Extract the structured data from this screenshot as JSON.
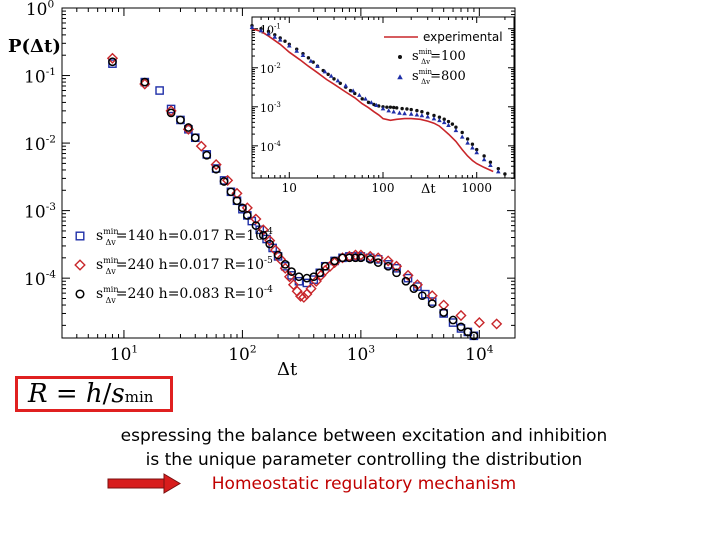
{
  "slide": {
    "formula": {
      "lhs": "R",
      "eq": " = ",
      "num": "h",
      "slash": "/",
      "denom": "s",
      "sub": "min",
      "border_color": "#e02020"
    },
    "text_line_1": "espressing the balance between excitation and inhibition",
    "text_line_2": "is the unique parameter controlling the distribution",
    "text_line_3": "Homeostatic regulatory mechanism",
    "highlight_color": "#c00000"
  },
  "chart_data": [
    {
      "type": "scatter",
      "ylabel": "P(Δt)",
      "xlabel": "Δt",
      "xscale": "log",
      "yscale": "log",
      "xlim": [
        3,
        20000
      ],
      "ylim": [
        1.3e-05,
        1
      ],
      "x_ticks": [
        10,
        100,
        1000,
        10000
      ],
      "x_tick_labels": [
        [
          "10",
          "1"
        ],
        [
          "10",
          "2"
        ],
        [
          "10",
          "3"
        ],
        [
          "10",
          "4"
        ]
      ],
      "y_ticks": [
        1,
        0.1,
        0.01,
        0.001,
        0.0001
      ],
      "y_tick_labels": [
        [
          "10",
          "0"
        ],
        [
          "10",
          "-1"
        ],
        [
          "10",
          "-2"
        ],
        [
          "10",
          "-3"
        ],
        [
          "10",
          "-4"
        ]
      ],
      "legend_position": "bottom-left",
      "series": [
        {
          "name": "sΔv min=140 h=0.017 R=10-4",
          "legend_s": "s",
          "legend_sup": "min",
          "legend_sub": "Δv",
          "legend_text": "=140 h=0.017 R=10",
          "legend_exp": "-4",
          "marker": "square",
          "color": "#1f2fa8",
          "x": [
            8,
            15,
            20,
            25,
            30,
            35,
            40,
            50,
            60,
            70,
            80,
            90,
            100,
            110,
            120,
            140,
            160,
            180,
            200,
            230,
            260,
            300,
            350,
            400,
            450,
            500,
            600,
            700,
            800,
            900,
            1000,
            1200,
            1400,
            1700,
            2000,
            2500,
            3000,
            3500,
            4000,
            5000,
            6000,
            7000,
            8000,
            9000,
            10000
          ],
          "y": [
            0.15,
            0.08,
            0.06,
            0.032,
            0.022,
            0.016,
            0.012,
            0.0068,
            0.0042,
            0.0028,
            0.0019,
            0.0014,
            0.00105,
            0.00085,
            0.0007,
            0.00052,
            0.00038,
            0.00028,
            0.00021,
            0.00015,
            0.00011,
            9e-05,
            8.5e-05,
            9.5e-05,
            0.00012,
            0.00015,
            0.00018,
            0.0002,
            0.00021,
            0.00021,
            0.00021,
            0.0002,
            0.00019,
            0.00016,
            0.00014,
            0.0001,
            7.5e-05,
            5.8e-05,
            4.5e-05,
            3e-05,
            2.2e-05,
            1.8e-05,
            1.6e-05,
            1.4e-05,
            1.2e-05
          ]
        },
        {
          "name": "sΔv min=240 h=0.017 R=10-5",
          "legend_s": "s",
          "legend_sup": "min",
          "legend_sub": "Δv",
          "legend_text": "=240 h=0.017 R=10",
          "legend_exp": "-5",
          "marker": "diamond",
          "color": "#c8262a",
          "x": [
            8,
            15,
            25,
            35,
            45,
            60,
            75,
            90,
            110,
            130,
            150,
            170,
            190,
            210,
            230,
            250,
            270,
            290,
            310,
            330,
            350,
            380,
            420,
            460,
            500,
            550,
            600,
            700,
            800,
            900,
            1000,
            1200,
            1400,
            1700,
            2000,
            2500,
            3000,
            4000,
            5000,
            7000,
            10000,
            14000
          ],
          "y": [
            0.18,
            0.075,
            0.03,
            0.016,
            0.009,
            0.0048,
            0.0028,
            0.0018,
            0.0011,
            0.00075,
            0.00052,
            0.00036,
            0.00026,
            0.00019,
            0.00014,
            0.000105,
            8e-05,
            6.4e-05,
            5.4e-05,
            5.2e-05,
            5.8e-05,
            7e-05,
            9e-05,
            0.00011,
            0.00013,
            0.00015,
            0.00017,
            0.0002,
            0.00021,
            0.00022,
            0.00022,
            0.00021,
            0.0002,
            0.00018,
            0.00015,
            0.00011,
            8e-05,
            5.5e-05,
            4e-05,
            2.8e-05,
            2.2e-05,
            2.1e-05
          ]
        },
        {
          "name": "sΔv min=240 h=0.083 R=10-4",
          "legend_s": "s",
          "legend_sup": "min",
          "legend_sub": "Δv",
          "legend_text": "=240 h=0.083 R=10",
          "legend_exp": "-4",
          "marker": "circle",
          "color": "#000000",
          "x": [
            8,
            15,
            25,
            30,
            35,
            40,
            50,
            60,
            70,
            80,
            90,
            100,
            110,
            130,
            150,
            170,
            200,
            230,
            260,
            300,
            350,
            400,
            450,
            500,
            600,
            700,
            800,
            900,
            1000,
            1200,
            1400,
            1700,
            2000,
            2400,
            2800,
            3300,
            4000,
            5000,
            6000,
            7000,
            8000,
            9000,
            10000
          ],
          "y": [
            0.16,
            0.08,
            0.028,
            0.022,
            0.017,
            0.012,
            0.0066,
            0.0041,
            0.0027,
            0.0019,
            0.0014,
            0.0011,
            0.00085,
            0.0006,
            0.00043,
            0.00032,
            0.00022,
            0.00016,
            0.000125,
            0.000105,
            0.0001,
            0.000105,
            0.00012,
            0.00015,
            0.00018,
            0.0002,
            0.0002,
            0.0002,
            0.0002,
            0.00019,
            0.00017,
            0.00015,
            0.00012,
            9e-05,
            7e-05,
            5.5e-05,
            4.2e-05,
            3.1e-05,
            2.4e-05,
            1.9e-05,
            1.6e-05,
            1.4e-05,
            1.2e-05
          ]
        }
      ]
    },
    {
      "type": "line",
      "xlabel": "Δt",
      "xscale": "log",
      "yscale": "log",
      "xlim": [
        4,
        2500
      ],
      "ylim": [
        1.5e-05,
        0.2
      ],
      "x_ticks": [
        10,
        100,
        1000
      ],
      "x_tick_labels": [
        "10",
        "100",
        "1000"
      ],
      "y_ticks": [
        0.1,
        0.01,
        0.001,
        0.0001
      ],
      "y_tick_labels": [
        [
          "10",
          "-1"
        ],
        [
          "10",
          "-2"
        ],
        [
          "10",
          "-3"
        ],
        [
          "10",
          "-4"
        ]
      ],
      "legend_position": "top-right",
      "series": [
        {
          "name": "experimental",
          "marker": "line",
          "color": "#c8262a",
          "x": [
            4,
            5,
            6,
            8,
            10,
            13,
            16,
            20,
            25,
            30,
            40,
            50,
            60,
            70,
            80,
            90,
            100,
            120,
            140,
            170,
            200,
            250,
            300,
            350,
            400,
            450,
            500,
            600,
            700,
            800,
            900,
            1000,
            1200,
            1500
          ],
          "y": [
            0.1,
            0.085,
            0.065,
            0.04,
            0.025,
            0.016,
            0.011,
            0.0075,
            0.005,
            0.0038,
            0.0024,
            0.0017,
            0.0012,
            0.00095,
            0.00075,
            0.00062,
            0.0005,
            0.00045,
            0.00048,
            0.0005,
            0.0005,
            0.00048,
            0.00043,
            0.00038,
            0.00032,
            0.00025,
            0.0002,
            0.00013,
            8e-05,
            5.5e-05,
            4.2e-05,
            3.5e-05,
            2.8e-05,
            2.2e-05
          ]
        },
        {
          "name": "sΔv min=100",
          "legend_s": "s",
          "legend_sup": "min",
          "legend_sub": "Δv",
          "legend_text": "=100",
          "marker": "dot",
          "color": "#111111",
          "x": [
            4,
            5,
            6,
            7,
            8,
            9,
            10,
            12,
            14,
            16,
            18,
            20,
            23,
            26,
            30,
            35,
            40,
            45,
            50,
            60,
            70,
            80,
            90,
            100,
            110,
            120,
            130,
            140,
            160,
            180,
            200,
            230,
            260,
            300,
            350,
            400,
            450,
            500,
            550,
            600,
            700,
            800,
            900,
            1000,
            1200,
            1400,
            1700,
            2000
          ],
          "y": [
            0.12,
            0.1,
            0.085,
            0.07,
            0.058,
            0.048,
            0.04,
            0.03,
            0.023,
            0.018,
            0.014,
            0.011,
            0.0085,
            0.0068,
            0.0052,
            0.004,
            0.0032,
            0.0026,
            0.0022,
            0.0016,
            0.0013,
            0.00115,
            0.00105,
            0.001,
            0.00098,
            0.00098,
            0.00096,
            0.00094,
            0.0009,
            0.00088,
            0.00085,
            0.0008,
            0.00075,
            0.00068,
            0.0006,
            0.00054,
            0.00048,
            0.00042,
            0.00036,
            0.0003,
            0.00022,
            0.00015,
            0.00011,
            8e-05,
            5.5e-05,
            3.8e-05,
            2.6e-05,
            1.9e-05
          ]
        },
        {
          "name": "sΔv min=800",
          "legend_s": "s",
          "legend_sup": "min",
          "legend_sub": "Δv",
          "legend_text": "=800",
          "marker": "triangle",
          "color": "#1f2fa8",
          "x": [
            4,
            5,
            6,
            7,
            8,
            10,
            12,
            14,
            17,
            20,
            24,
            28,
            33,
            40,
            48,
            56,
            65,
            75,
            85,
            100,
            115,
            130,
            150,
            170,
            200,
            230,
            260,
            300,
            350,
            400,
            450,
            500,
            600,
            700,
            800,
            900,
            1000,
            1200,
            1400,
            1700
          ],
          "y": [
            0.11,
            0.09,
            0.075,
            0.062,
            0.052,
            0.037,
            0.027,
            0.021,
            0.015,
            0.011,
            0.008,
            0.0062,
            0.0047,
            0.0035,
            0.0026,
            0.002,
            0.0016,
            0.0013,
            0.0011,
            0.0009,
            0.0008,
            0.00075,
            0.0007,
            0.00068,
            0.00066,
            0.00063,
            0.0006,
            0.00056,
            0.0005,
            0.00045,
            0.0004,
            0.00034,
            0.00025,
            0.00017,
            0.00012,
            9e-05,
            6.8e-05,
            4.5e-05,
            3.2e-05,
            2.2e-05
          ]
        }
      ]
    }
  ]
}
